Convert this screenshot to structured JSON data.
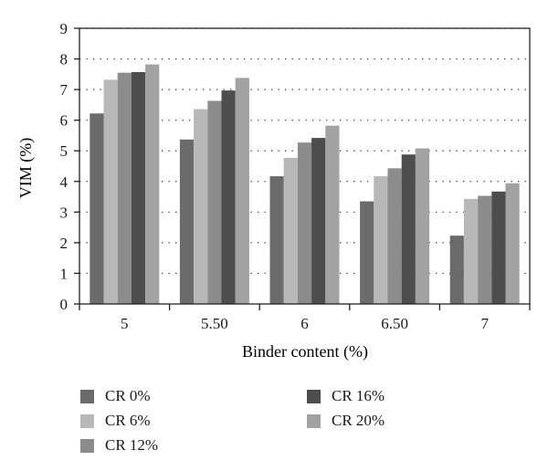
{
  "chart_data": {
    "type": "bar",
    "title": "",
    "xlabel": "Binder content (%)",
    "ylabel": "VIM (%)",
    "ylim": [
      0,
      9
    ],
    "yticks": [
      "0",
      "1",
      "2",
      "3",
      "4",
      "5",
      "6",
      "7",
      "8",
      "9"
    ],
    "grid": "dotted horizontal",
    "legend_placement": "bottom",
    "categories": [
      "5",
      "5.50",
      "6",
      "6.50",
      "7"
    ],
    "series": [
      {
        "name": "CR 0%",
        "color": "#6b6b6b",
        "values": [
          6.22,
          5.37,
          4.17,
          3.35,
          2.23
        ]
      },
      {
        "name": "CR 6%",
        "color": "#b8b8b8",
        "values": [
          7.32,
          6.36,
          4.77,
          4.17,
          3.43
        ]
      },
      {
        "name": "CR 12%",
        "color": "#8c8c8c",
        "values": [
          7.55,
          6.63,
          5.27,
          4.43,
          3.53
        ]
      },
      {
        "name": "CR 16%",
        "color": "#4d4d4d",
        "values": [
          7.57,
          6.97,
          5.42,
          4.88,
          3.67
        ]
      },
      {
        "name": "CR 20%",
        "color": "#a2a2a2",
        "values": [
          7.82,
          7.38,
          5.82,
          5.08,
          3.94
        ]
      }
    ]
  }
}
